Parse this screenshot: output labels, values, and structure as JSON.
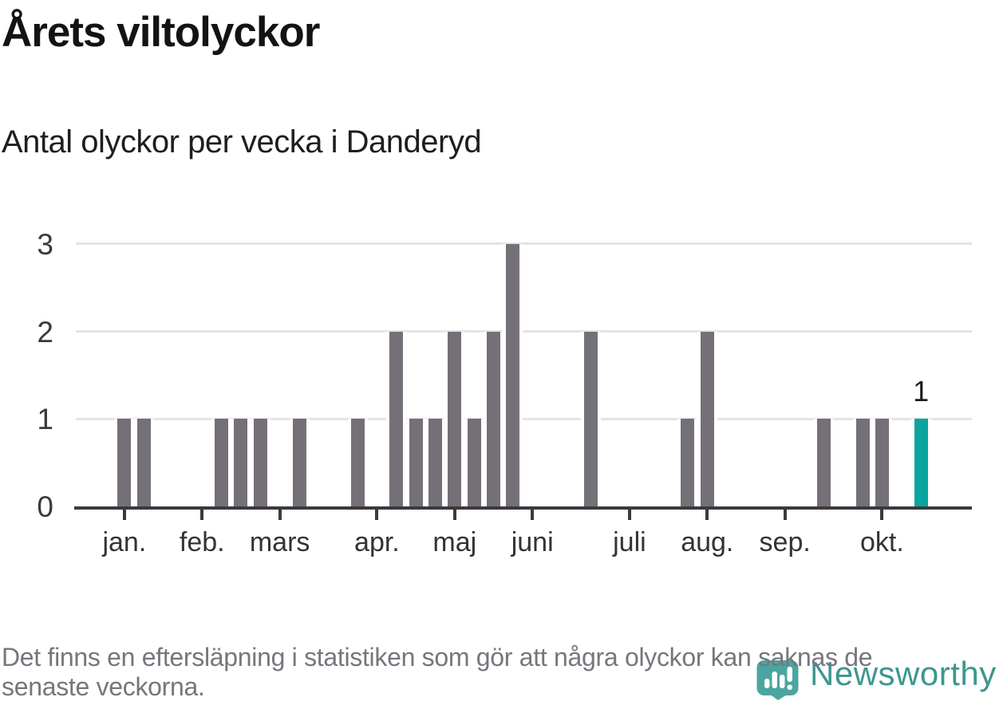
{
  "title": "Årets viltolyckor",
  "subtitle": "Antal olyckor per vecka i Danderyd",
  "footnote_lines": [
    "Det finns en eftersläpning i statistiken som gör att några olyckor kan saknas de",
    "senaste veckorna."
  ],
  "logo": {
    "text": "Newsworthy"
  },
  "colors": {
    "bar": "#757078",
    "highlight": "#0ba5a0",
    "grid": "#e4e3e5",
    "axis": "#3a3a3a",
    "title_text": "#131313",
    "footnote_text": "#76767d",
    "logo_teal": "#3e968f",
    "pin_teal": "#4ba5a0"
  },
  "chart_data": {
    "type": "bar",
    "title": "Årets viltolyckor",
    "subtitle": "Antal olyckor per vecka i Danderyd",
    "x_unit": "vecka (one bar per week, jan–okt)",
    "ylim": [
      0,
      3
    ],
    "y_ticks": [
      "0",
      "1",
      "2",
      "3"
    ],
    "grid": "horizontal",
    "total_slots": 46,
    "month_ticks": [
      {
        "label": "jan.",
        "slot": 2
      },
      {
        "label": "feb.",
        "slot": 6
      },
      {
        "label": "mars",
        "slot": 10
      },
      {
        "label": "apr.",
        "slot": 15
      },
      {
        "label": "maj",
        "slot": 19
      },
      {
        "label": "juni",
        "slot": 23
      },
      {
        "label": "juli",
        "slot": 28
      },
      {
        "label": "aug.",
        "slot": 32
      },
      {
        "label": "sep.",
        "slot": 36
      },
      {
        "label": "okt.",
        "slot": 41
      }
    ],
    "weeks": [
      {
        "slot": 2,
        "value": 1
      },
      {
        "slot": 3,
        "value": 1
      },
      {
        "slot": 7,
        "value": 1
      },
      {
        "slot": 8,
        "value": 1
      },
      {
        "slot": 9,
        "value": 1
      },
      {
        "slot": 11,
        "value": 1
      },
      {
        "slot": 14,
        "value": 1
      },
      {
        "slot": 16,
        "value": 2
      },
      {
        "slot": 17,
        "value": 1
      },
      {
        "slot": 18,
        "value": 1
      },
      {
        "slot": 19,
        "value": 2
      },
      {
        "slot": 20,
        "value": 1
      },
      {
        "slot": 21,
        "value": 2
      },
      {
        "slot": 22,
        "value": 3
      },
      {
        "slot": 26,
        "value": 2
      },
      {
        "slot": 31,
        "value": 1
      },
      {
        "slot": 32,
        "value": 2
      },
      {
        "slot": 38,
        "value": 1
      },
      {
        "slot": 40,
        "value": 1
      },
      {
        "slot": 41,
        "value": 1
      },
      {
        "slot": 43,
        "value": 1,
        "highlight": true,
        "label": "1"
      }
    ]
  }
}
